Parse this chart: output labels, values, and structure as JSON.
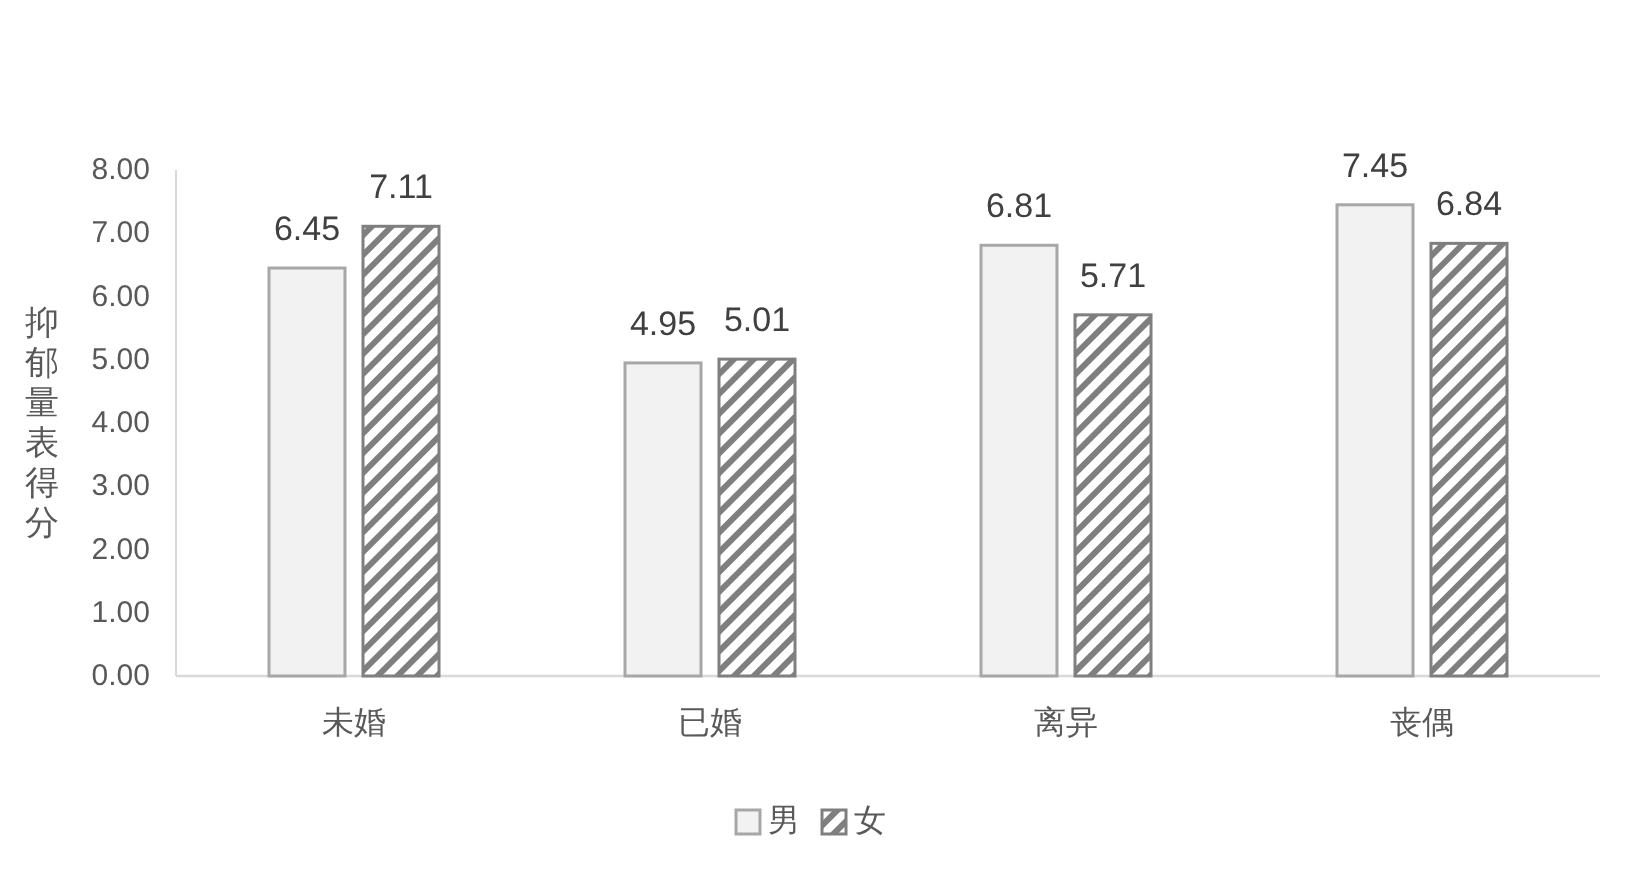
{
  "chart_data": {
    "type": "bar",
    "categories": [
      "未婚",
      "已婚",
      "离异",
      "丧偶"
    ],
    "series": [
      {
        "name": "男",
        "color": "#f2f2f2",
        "values": [
          6.45,
          4.95,
          6.81,
          7.45
        ]
      },
      {
        "name": "女",
        "color": "#7f7f7f",
        "values": [
          7.11,
          5.01,
          5.71,
          6.84
        ]
      }
    ],
    "ylabel": "抑郁量表得分",
    "ylim": [
      0,
      8
    ],
    "yticks": [
      {
        "value": 0,
        "label": "0.00"
      },
      {
        "value": 1,
        "label": "1.00"
      },
      {
        "value": 2,
        "label": "2.00"
      },
      {
        "value": 3,
        "label": "3.00"
      },
      {
        "value": 4,
        "label": "4.00"
      },
      {
        "value": 5,
        "label": "5.00"
      },
      {
        "value": 6,
        "label": "6.00"
      },
      {
        "value": 7,
        "label": "7.00"
      },
      {
        "value": 8,
        "label": "8.00"
      }
    ],
    "data_labels": true,
    "legend": "bottom"
  }
}
